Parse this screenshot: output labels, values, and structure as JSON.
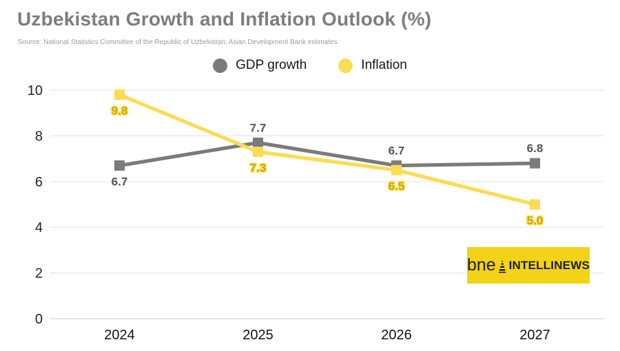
{
  "header": {
    "title": "Uzbekistan Growth and Inflation Outlook (%)",
    "source": "Source: National Statistics Committee of the Republic of Uzbekistan; Asian Development Bank estimates."
  },
  "legend": [
    {
      "label": "GDP growth",
      "color": "#7b7b7b"
    },
    {
      "label": "Inflation",
      "color": "#FBDC52"
    }
  ],
  "logo": {
    "prefix": "bne",
    "name": "INTELLINEWS",
    "bg": "#F2D318"
  },
  "chart_data": {
    "type": "line",
    "categories": [
      "2024",
      "2025",
      "2026",
      "2027"
    ],
    "series": [
      {
        "name": "GDP growth",
        "values": [
          6.7,
          7.7,
          6.7,
          6.8
        ],
        "color": "#7b7b7b",
        "label_color": "#545454",
        "label_sides": [
          "below",
          "above",
          "above",
          "above"
        ]
      },
      {
        "name": "Inflation",
        "values": [
          9.8,
          7.3,
          6.5,
          5.0
        ],
        "color": "#FBDC52",
        "label_color": "#C7A410",
        "label_outline": "#FFE45E",
        "label_sides": [
          "below",
          "below",
          "below",
          "below"
        ]
      }
    ],
    "ylim": [
      0,
      10
    ],
    "yticks": [
      0,
      2,
      4,
      6,
      8,
      10
    ],
    "grid": true,
    "legend_position": "top",
    "marker": "square"
  }
}
